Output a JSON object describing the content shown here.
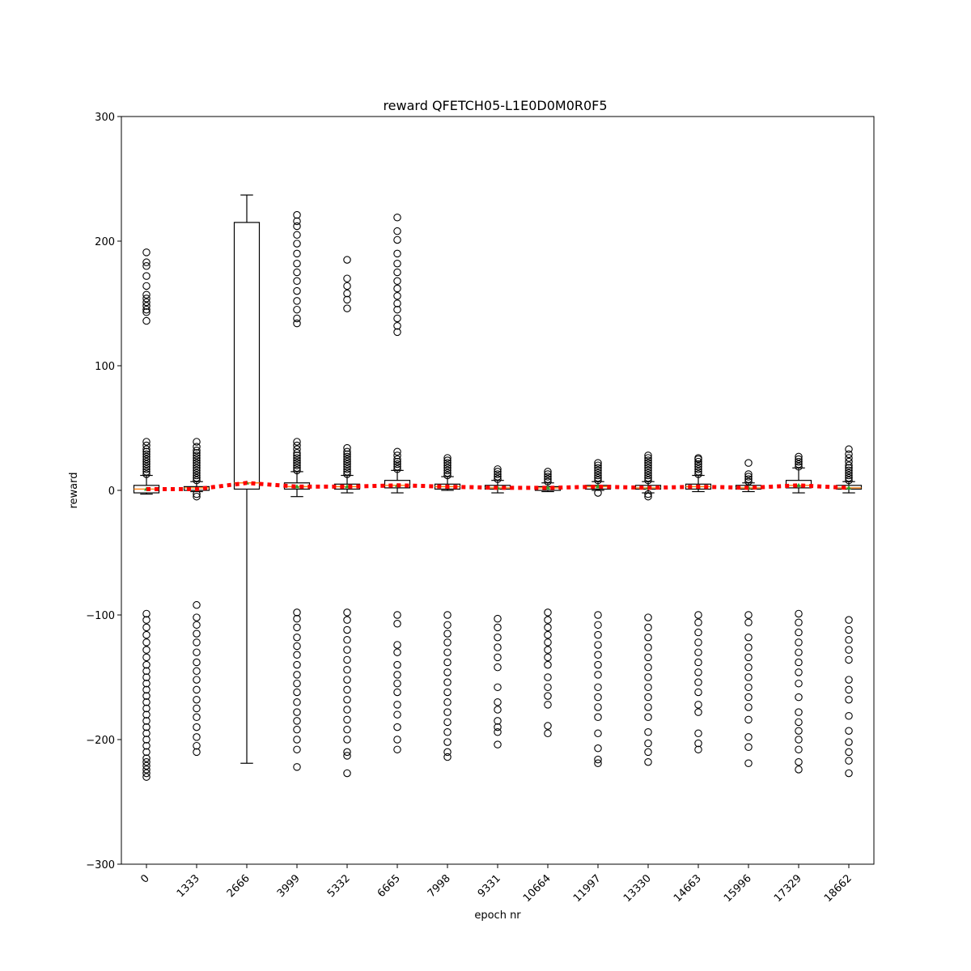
{
  "chart_data": {
    "type": "box",
    "title": "reward QFETCH05-L1E0D0M0R0F5",
    "xlabel": "epoch nr",
    "ylabel": "reward",
    "ylim": [
      -300,
      300
    ],
    "yticks": [
      -300,
      -200,
      -100,
      0,
      100,
      200,
      300
    ],
    "ytick_labels": [
      "−300",
      "−200",
      "−100",
      "0",
      "100",
      "200",
      "300"
    ],
    "grid": false,
    "categories": [
      "0",
      "1333",
      "2666",
      "3999",
      "5332",
      "6665",
      "7998",
      "9331",
      "10664",
      "11997",
      "13330",
      "14663",
      "15996",
      "17329",
      "18662"
    ],
    "boxes": [
      {
        "q1": -2,
        "median": 1,
        "q3": 4,
        "whisker_low": -3,
        "whisker_high": 12,
        "mean": 1,
        "fliers_high": [
          13,
          15,
          17,
          19,
          21,
          23,
          25,
          27,
          29,
          31,
          33,
          36,
          39,
          136,
          143,
          145,
          148,
          151,
          154,
          157,
          164,
          172,
          180,
          183,
          191
        ],
        "fliers_low": [
          -99,
          -104,
          -110,
          -116,
          -122,
          -128,
          -134,
          -140,
          -145,
          -150,
          -155,
          -160,
          -165,
          -170,
          -175,
          -180,
          -185,
          -190,
          -195,
          -200,
          -205,
          -210,
          -215,
          -218,
          -221,
          -224,
          -227,
          -230
        ]
      },
      {
        "q1": 0,
        "median": 2,
        "q3": 3,
        "whisker_low": -1,
        "whisker_high": 7,
        "mean": 1,
        "fliers_high": [
          8,
          10,
          12,
          14,
          16,
          18,
          20,
          22,
          24,
          26,
          28,
          30,
          32,
          35,
          39
        ],
        "fliers_low": [
          -3,
          -5,
          -92,
          -102,
          -108,
          -115,
          -122,
          -130,
          -138,
          -145,
          -152,
          -160,
          -168,
          -175,
          -182,
          -190,
          -198,
          -205,
          -210
        ]
      },
      {
        "q1": 1,
        "median": 6,
        "q3": 215,
        "whisker_low": -219,
        "whisker_high": 237,
        "mean": 6,
        "fliers_high": [],
        "fliers_low": []
      },
      {
        "q1": 1,
        "median": 3,
        "q3": 6,
        "whisker_low": -5,
        "whisker_high": 15,
        "mean": 3,
        "fliers_high": [
          16,
          18,
          20,
          22,
          24,
          26,
          28,
          30,
          33,
          36,
          39,
          134,
          138,
          145,
          152,
          160,
          168,
          175,
          182,
          190,
          198,
          205,
          212,
          216,
          221
        ],
        "fliers_low": [
          -98,
          -103,
          -110,
          -118,
          -125,
          -132,
          -140,
          -148,
          -155,
          -162,
          -170,
          -178,
          -185,
          -192,
          -200,
          -208,
          -222
        ]
      },
      {
        "q1": 1,
        "median": 3,
        "q3": 5,
        "whisker_low": -2,
        "whisker_high": 12,
        "mean": 3,
        "fliers_high": [
          13,
          15,
          17,
          19,
          21,
          23,
          25,
          27,
          29,
          31,
          34,
          146,
          153,
          158,
          164,
          170,
          185
        ],
        "fliers_low": [
          -98,
          -104,
          -112,
          -120,
          -128,
          -136,
          -144,
          -152,
          -160,
          -168,
          -176,
          -184,
          -192,
          -200,
          -210,
          -213,
          -227
        ]
      },
      {
        "q1": 2,
        "median": 4,
        "q3": 8,
        "whisker_low": -2,
        "whisker_high": 16,
        "mean": 4,
        "fliers_high": [
          17,
          19,
          21,
          23,
          25,
          28,
          31,
          127,
          132,
          138,
          145,
          150,
          156,
          162,
          168,
          175,
          182,
          190,
          201,
          208,
          219
        ],
        "fliers_low": [
          -100,
          -107,
          -124,
          -130,
          -140,
          -148,
          -155,
          -162,
          -172,
          -180,
          -190,
          -200,
          -208
        ]
      },
      {
        "q1": 1,
        "median": 3,
        "q3": 5,
        "whisker_low": 0,
        "whisker_high": 11,
        "mean": 3,
        "fliers_high": [
          12,
          14,
          16,
          18,
          20,
          22,
          24,
          26
        ],
        "fliers_low": [
          -100,
          -108,
          -115,
          -122,
          -130,
          -138,
          -146,
          -154,
          -162,
          -170,
          -178,
          -186,
          -194,
          -202,
          -210,
          -214
        ]
      },
      {
        "q1": 1,
        "median": 2,
        "q3": 4,
        "whisker_low": -2,
        "whisker_high": 8,
        "mean": 2,
        "fliers_high": [
          9,
          11,
          13,
          15,
          17
        ],
        "fliers_low": [
          -103,
          -110,
          -118,
          -126,
          -134,
          -142,
          -158,
          -170,
          -176,
          -185,
          -190,
          -194,
          -204
        ]
      },
      {
        "q1": 0,
        "median": 2,
        "q3": 3,
        "whisker_low": -1,
        "whisker_high": 6,
        "mean": 2,
        "fliers_high": [
          7,
          9,
          11,
          13,
          15
        ],
        "fliers_low": [
          -98,
          -104,
          -110,
          -116,
          -122,
          -128,
          -134,
          -140,
          -150,
          -158,
          -165,
          -172,
          -189,
          -195
        ]
      },
      {
        "q1": 1,
        "median": 3,
        "q3": 4,
        "whisker_low": 0,
        "whisker_high": 7,
        "mean": 3,
        "fliers_high": [
          8,
          10,
          12,
          14,
          16,
          18,
          20,
          22
        ],
        "fliers_low": [
          -2,
          -100,
          -108,
          -116,
          -124,
          -132,
          -140,
          -148,
          -158,
          -166,
          -174,
          -182,
          -195,
          -207,
          -216,
          -219
        ]
      },
      {
        "q1": 1,
        "median": 2,
        "q3": 4,
        "whisker_low": -2,
        "whisker_high": 7,
        "mean": 2,
        "fliers_high": [
          8,
          10,
          12,
          14,
          16,
          18,
          20,
          22,
          24,
          26,
          28
        ],
        "fliers_low": [
          -3,
          -5,
          -102,
          -110,
          -118,
          -126,
          -134,
          -142,
          -150,
          -158,
          -166,
          -174,
          -182,
          -194,
          -203,
          -210,
          -218
        ]
      },
      {
        "q1": 1,
        "median": 3,
        "q3": 5,
        "whisker_low": -1,
        "whisker_high": 12,
        "mean": 3,
        "fliers_high": [
          13,
          15,
          17,
          19,
          21,
          23,
          25,
          26
        ],
        "fliers_low": [
          -100,
          -106,
          -114,
          -122,
          -130,
          -138,
          -146,
          -154,
          -162,
          -172,
          -178,
          -195,
          -203,
          -208
        ]
      },
      {
        "q1": 1,
        "median": 2,
        "q3": 4,
        "whisker_low": -1,
        "whisker_high": 6,
        "mean": 2,
        "fliers_high": [
          7,
          9,
          11,
          13,
          22
        ],
        "fliers_low": [
          -100,
          -106,
          -118,
          -126,
          -134,
          -142,
          -150,
          -158,
          -166,
          -174,
          -184,
          -198,
          -206,
          -219
        ]
      },
      {
        "q1": 2,
        "median": 4,
        "q3": 8,
        "whisker_low": -2,
        "whisker_high": 18,
        "mean": 4,
        "fliers_high": [
          19,
          21,
          23,
          25,
          27
        ],
        "fliers_low": [
          -99,
          -106,
          -114,
          -122,
          -130,
          -138,
          -146,
          -155,
          -166,
          -178,
          -186,
          -193,
          -200,
          -208,
          -218,
          -224
        ]
      },
      {
        "q1": 1,
        "median": 2,
        "q3": 4,
        "whisker_low": -2,
        "whisker_high": 7,
        "mean": 2,
        "fliers_high": [
          8,
          10,
          12,
          14,
          16,
          18,
          20,
          23,
          26,
          29,
          33
        ],
        "fliers_low": [
          -104,
          -112,
          -120,
          -128,
          -136,
          -152,
          -160,
          -168,
          -181,
          -193,
          -202,
          -210,
          -217,
          -227
        ]
      }
    ],
    "mean_line": {
      "color": "#ff0000",
      "style": "dotted"
    },
    "median_color": "#ff7f0e",
    "mean_marker_color": "#2ca02c"
  }
}
